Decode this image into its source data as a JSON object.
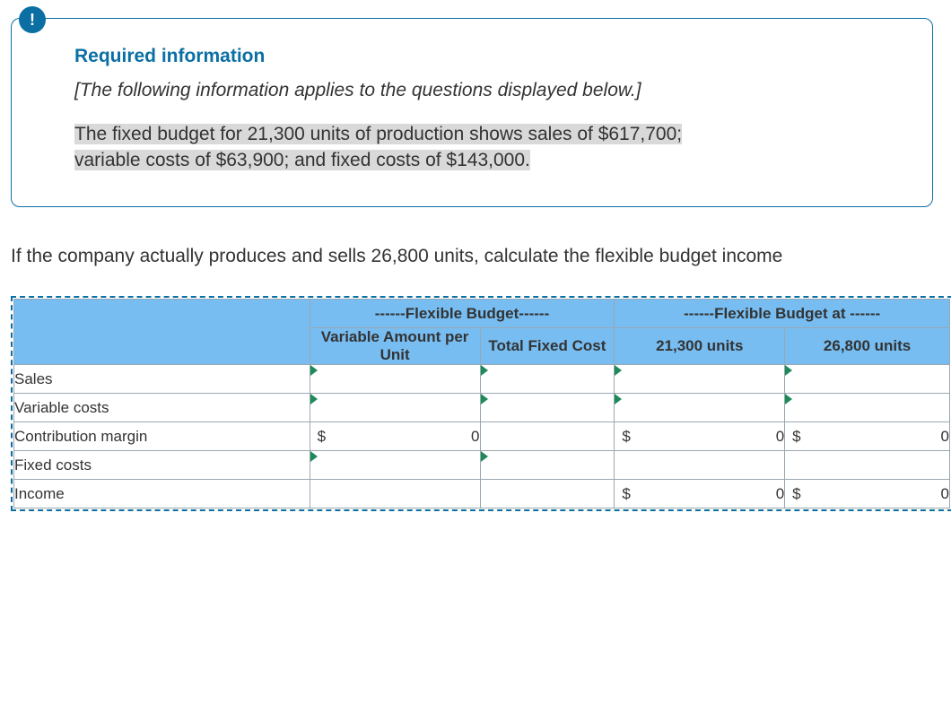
{
  "info": {
    "badge": "!",
    "title": "Required information",
    "note": "[The following information applies to the questions displayed below.]",
    "line1": "The fixed budget for 21,300 units of production shows sales of $617,700;",
    "line2": "variable costs of $63,900; and fixed costs of $143,000."
  },
  "question": "If the company actually produces and sells 26,800 units, calculate the flexible budget income",
  "table": {
    "group1": "------Flexible Budget------",
    "group2": "------Flexible Budget at ------",
    "col_var": "Variable Amount per Unit",
    "col_fix": "Total Fixed Cost",
    "col_u1": "21,300 units",
    "col_u2": "26,800 units",
    "rows": {
      "r0": "Sales",
      "r1": "Variable costs",
      "r2": "Contribution margin",
      "r3": "Fixed costs",
      "r4": "Income"
    },
    "calc": {
      "dollar": "$",
      "zero": "0"
    }
  },
  "colors": {
    "border": "#0b6fa4",
    "header_bg": "#77bdf1",
    "highlight_bg": "#d9d9d9",
    "triangle": "#1e8a5a",
    "cell_border": "#9aa7b2"
  }
}
